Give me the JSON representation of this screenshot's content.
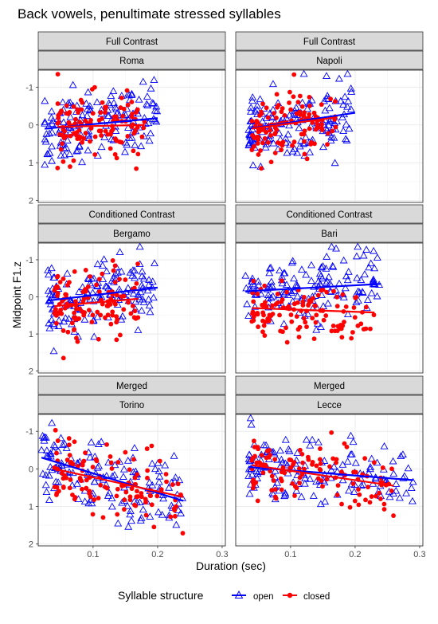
{
  "title": "Back vowels, penultimate stressed syllables",
  "chart_data": {
    "type": "scatter",
    "title": "Back vowels, penultimate stressed syllables",
    "xlabel": "Duration (sec)",
    "ylabel": "Midpoint F1.z",
    "xlim": [
      0.015,
      0.305
    ],
    "ylim_reversed": [
      -1.45,
      2.05
    ],
    "x_ticks": [
      "0.1",
      "0.2",
      "0.3"
    ],
    "x_tick_values": [
      0.1,
      0.2,
      0.3
    ],
    "y_ticks": [
      "-1",
      "0",
      "1",
      "2"
    ],
    "y_tick_values": [
      -1,
      0,
      1,
      2
    ],
    "y_axis_reversed": true,
    "grid": true,
    "legend": {
      "title": "Syllable structure",
      "placement": "bottom",
      "entries": [
        {
          "name": "open",
          "color": "#0000ff",
          "marker": "triangle-open"
        },
        {
          "name": "closed",
          "color": "#ff0000",
          "marker": "circle-filled"
        }
      ]
    },
    "panels": [
      {
        "strip_top": "Full Contrast",
        "strip_bottom": "Roma",
        "series": [
          {
            "name": "open",
            "x_range": [
              0.025,
              0.2
            ],
            "y_mean": 0.05,
            "y_sd": 0.45,
            "fit": [
              [
                0.025,
                0.1
              ],
              [
                0.2,
                -0.18
              ]
            ]
          },
          {
            "name": "closed",
            "x_range": [
              0.045,
              0.18
            ],
            "y_mean": 0.05,
            "y_sd": 0.4,
            "fit": [
              [
                0.045,
                0.05
              ],
              [
                0.18,
                0.0
              ]
            ]
          }
        ]
      },
      {
        "strip_top": "Full Contrast",
        "strip_bottom": "Napoli",
        "series": [
          {
            "name": "open",
            "x_range": [
              0.035,
              0.2
            ],
            "y_mean": 0.0,
            "y_sd": 0.45,
            "fit": [
              [
                0.035,
                0.1
              ],
              [
                0.2,
                -0.32
              ]
            ]
          },
          {
            "name": "closed",
            "x_range": [
              0.04,
              0.17
            ],
            "y_mean": 0.1,
            "y_sd": 0.45,
            "fit": [
              [
                0.04,
                0.1
              ],
              [
                0.17,
                -0.2
              ]
            ]
          }
        ]
      },
      {
        "strip_top": "Conditioned Contrast",
        "strip_bottom": "Bergamo",
        "series": [
          {
            "name": "open",
            "x_range": [
              0.03,
              0.2
            ],
            "y_mean": 0.0,
            "y_sd": 0.45,
            "fit": [
              [
                0.03,
                0.1
              ],
              [
                0.2,
                -0.25
              ]
            ]
          },
          {
            "name": "closed",
            "x_range": [
              0.04,
              0.17
            ],
            "y_mean": 0.15,
            "y_sd": 0.45,
            "fit": [
              [
                0.04,
                0.25
              ],
              [
                0.17,
                0.05
              ]
            ]
          }
        ]
      },
      {
        "strip_top": "Conditioned Contrast",
        "strip_bottom": "Bari",
        "series": [
          {
            "name": "open",
            "x_range": [
              0.03,
              0.24
            ],
            "y_mean": -0.1,
            "y_sd": 0.45,
            "fit": [
              [
                0.03,
                -0.15
              ],
              [
                0.24,
                -0.35
              ]
            ]
          },
          {
            "name": "closed",
            "x_range": [
              0.04,
              0.23
            ],
            "y_mean": 0.4,
            "y_sd": 0.4,
            "fit": [
              [
                0.04,
                0.3
              ],
              [
                0.23,
                0.42
              ]
            ]
          }
        ]
      },
      {
        "strip_top": "Merged",
        "strip_bottom": "Torino",
        "series": [
          {
            "name": "open",
            "x_range": [
              0.02,
              0.24
            ],
            "y_mean": 0.1,
            "y_sd": 0.5,
            "fit": [
              [
                0.02,
                -0.3
              ],
              [
                0.24,
                0.85
              ]
            ]
          },
          {
            "name": "closed",
            "x_range": [
              0.04,
              0.24
            ],
            "y_mean": 0.25,
            "y_sd": 0.45,
            "fit": [
              [
                0.04,
                0.0
              ],
              [
                0.24,
                0.75
              ]
            ]
          }
        ]
      },
      {
        "strip_top": "Merged",
        "strip_bottom": "Lecce",
        "series": [
          {
            "name": "open",
            "x_range": [
              0.035,
              0.29
            ],
            "y_mean": 0.2,
            "y_sd": 0.4,
            "fit": [
              [
                0.035,
                -0.05
              ],
              [
                0.29,
                0.3
              ]
            ]
          },
          {
            "name": "closed",
            "x_range": [
              0.04,
              0.26
            ],
            "y_mean": 0.2,
            "y_sd": 0.4,
            "fit": [
              [
                0.04,
                -0.1
              ],
              [
                0.26,
                0.45
              ]
            ]
          }
        ]
      }
    ]
  },
  "colors": {
    "open": "#0000ff",
    "closed": "#ff0000",
    "strip_bg": "#d9d9d9",
    "grid": "#ebebeb"
  }
}
